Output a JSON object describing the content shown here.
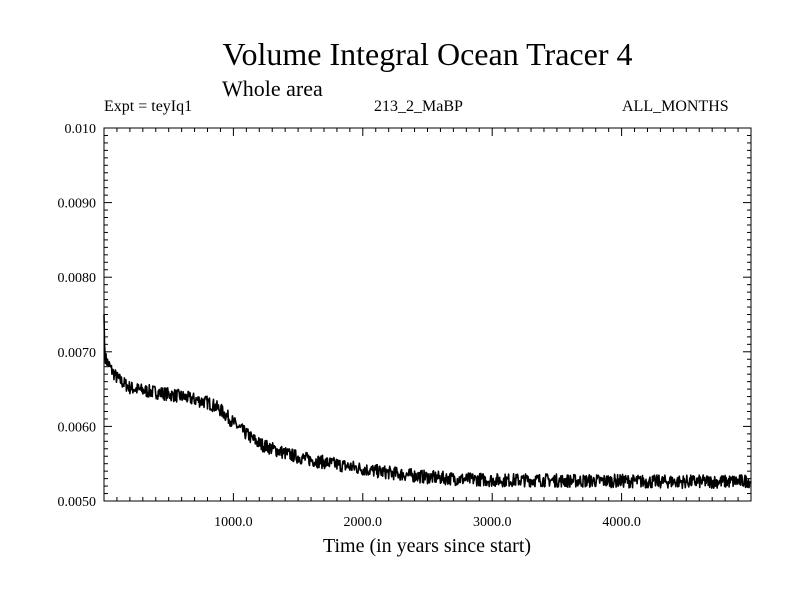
{
  "header": {
    "title": "Volume Integral Ocean Tracer 4",
    "subtitle": "Whole area",
    "expt": "Expt = teyIq1",
    "run": "213_2_MaBP",
    "period": "ALL_MONTHS"
  },
  "chart_data": {
    "type": "line",
    "title": "Volume Integral Ocean Tracer 4",
    "subtitle": "Whole area",
    "xlabel": "Time (in years since start)",
    "ylabel": "",
    "xlim": [
      0,
      5000
    ],
    "ylim": [
      0.005,
      0.01
    ],
    "x_ticks": [
      1000,
      2000,
      3000,
      4000
    ],
    "x_tick_labels": [
      "1000.0",
      "2000.0",
      "3000.0",
      "4000.0"
    ],
    "y_ticks": [
      0.005,
      0.006,
      0.007,
      0.008,
      0.009,
      0.01
    ],
    "y_tick_labels": [
      "0.0050",
      "0.0060",
      "0.0070",
      "0.0080",
      "0.0090",
      "0.010"
    ],
    "grid": false,
    "line_color": "#000000",
    "series": [
      {
        "x": [
          0,
          5,
          15,
          30,
          60,
          100,
          150,
          200,
          250,
          300,
          400,
          500,
          600,
          700,
          800,
          850,
          900,
          950,
          1000,
          1050,
          1100,
          1150,
          1200,
          1300,
          1400,
          1500,
          1600,
          1700,
          1800,
          1900,
          2000,
          2100,
          2200,
          2300,
          2400,
          2500,
          2600,
          2700,
          2800,
          2900,
          3000,
          3200,
          3400,
          3600,
          3800,
          4000,
          4200,
          4400,
          4600,
          4800,
          5000
        ],
        "y": [
          0.0075,
          0.007,
          0.0069,
          0.00685,
          0.00675,
          0.00665,
          0.00658,
          0.00652,
          0.0065,
          0.00648,
          0.00646,
          0.00643,
          0.0064,
          0.00636,
          0.00632,
          0.00628,
          0.00622,
          0.00614,
          0.00605,
          0.00597,
          0.0059,
          0.00583,
          0.00577,
          0.0057,
          0.00564,
          0.00559,
          0.00555,
          0.00552,
          0.00549,
          0.00546,
          0.00543,
          0.0054,
          0.00538,
          0.00536,
          0.00534,
          0.00532,
          0.00531,
          0.0053,
          0.00529,
          0.00529,
          0.00528,
          0.00528,
          0.00528,
          0.00527,
          0.00527,
          0.00527,
          0.00526,
          0.00526,
          0.00526,
          0.00526,
          0.00527
        ]
      }
    ]
  }
}
